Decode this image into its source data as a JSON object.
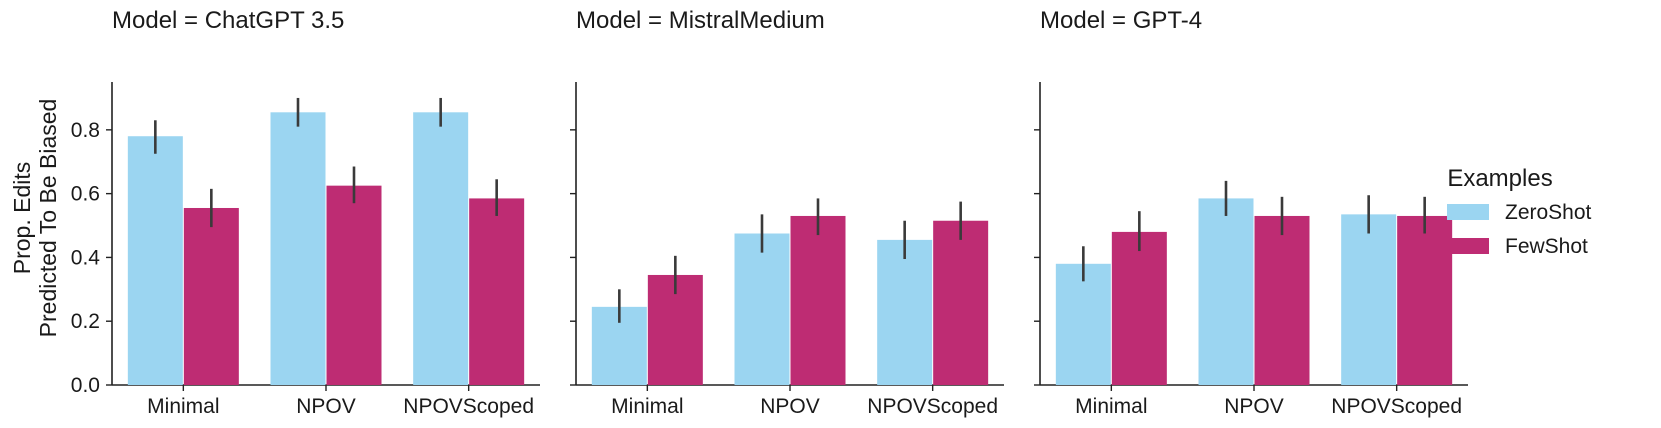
{
  "chart_data": {
    "type": "bar",
    "ylabel_lines": [
      "Prop. Edits",
      "Predicted To Be Biased"
    ],
    "xlabel": "",
    "ylim": [
      0,
      0.95
    ],
    "yticks": [
      "0.0",
      "0.2",
      "0.4",
      "0.6",
      "0.8"
    ],
    "ytick_values": [
      0.0,
      0.2,
      0.4,
      0.6,
      0.8
    ],
    "grid": false,
    "legend": {
      "title": "Examples",
      "placement": "right",
      "entries": [
        "ZeroShot",
        "FewShot"
      ]
    },
    "colors": {
      "ZeroShot": "#9bd5f1",
      "FewShot": "#be2c73"
    },
    "panels": [
      {
        "title": "Model = ChatGPT 3.5",
        "categories": [
          "Minimal",
          "NPOV",
          "NPOVScoped"
        ],
        "series": [
          {
            "name": "ZeroShot",
            "values": [
              0.78,
              0.855,
              0.855
            ],
            "err_low": [
              0.725,
              0.81,
              0.81
            ],
            "err_high": [
              0.83,
              0.9,
              0.9
            ]
          },
          {
            "name": "FewShot",
            "values": [
              0.555,
              0.625,
              0.585
            ],
            "err_low": [
              0.495,
              0.57,
              0.53
            ],
            "err_high": [
              0.615,
              0.685,
              0.645
            ]
          }
        ]
      },
      {
        "title": "Model = MistralMedium",
        "categories": [
          "Minimal",
          "NPOV",
          "NPOVScoped"
        ],
        "series": [
          {
            "name": "ZeroShot",
            "values": [
              0.245,
              0.475,
              0.455
            ],
            "err_low": [
              0.195,
              0.415,
              0.395
            ],
            "err_high": [
              0.3,
              0.535,
              0.515
            ]
          },
          {
            "name": "FewShot",
            "values": [
              0.345,
              0.53,
              0.515
            ],
            "err_low": [
              0.285,
              0.47,
              0.455
            ],
            "err_high": [
              0.405,
              0.585,
              0.575
            ]
          }
        ]
      },
      {
        "title": "Model = GPT-4",
        "categories": [
          "Minimal",
          "NPOV",
          "NPOVScoped"
        ],
        "series": [
          {
            "name": "ZeroShot",
            "values": [
              0.38,
              0.585,
              0.535
            ],
            "err_low": [
              0.325,
              0.53,
              0.475
            ],
            "err_high": [
              0.435,
              0.64,
              0.595
            ]
          },
          {
            "name": "FewShot",
            "values": [
              0.48,
              0.53,
              0.53
            ],
            "err_low": [
              0.42,
              0.47,
              0.475
            ],
            "err_high": [
              0.545,
              0.59,
              0.59
            ]
          }
        ]
      }
    ]
  }
}
